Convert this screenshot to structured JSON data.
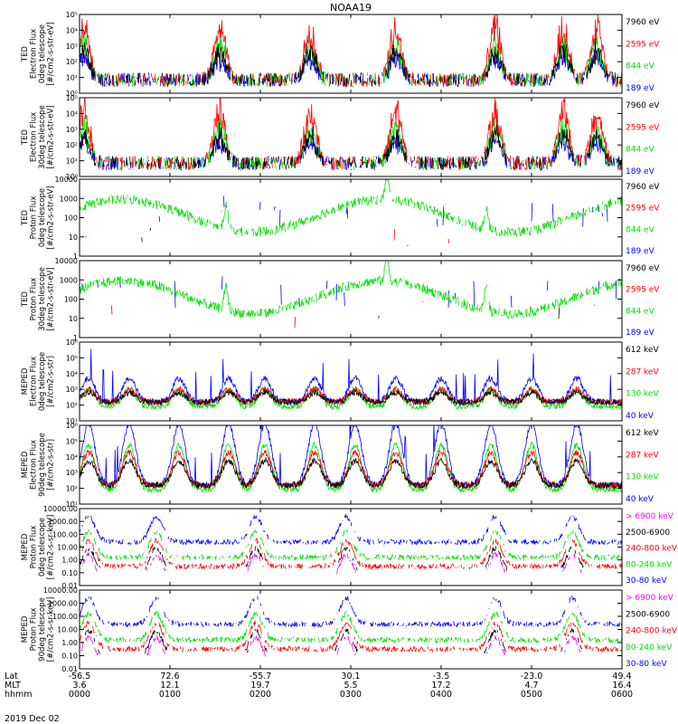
{
  "title": "NOAA19",
  "date_label": "2019 Dec 02",
  "colors": {
    "black": "#000000",
    "red": "#ff0000",
    "green": "#00e000",
    "blue": "#0000ff",
    "magenta": "#ff00ff"
  },
  "time_axis": {
    "row_labels": [
      "Lat",
      "MLT",
      "hhmm"
    ],
    "columns": [
      {
        "lat": "-56.5",
        "mlt": "3.6",
        "hhmm": "0000"
      },
      {
        "lat": "72.6",
        "mlt": "12.1",
        "hhmm": "0100"
      },
      {
        "lat": "-55.7",
        "mlt": "19.7",
        "hhmm": "0200"
      },
      {
        "lat": "30.1",
        "mlt": "5.5",
        "hhmm": "0300"
      },
      {
        "lat": "-3.5",
        "mlt": "17.2",
        "hhmm": "0400"
      },
      {
        "lat": "-23.0",
        "mlt": "4.7",
        "hhmm": "0500"
      },
      {
        "lat": "49.4",
        "mlt": "16.4",
        "hhmm": "0600"
      }
    ]
  },
  "chart_data": [
    {
      "type": "line",
      "ylabel": [
        "TED",
        "Electron Flux",
        "0deg telescope",
        "[#/cm2-s-str-eV]"
      ],
      "yscale": "log",
      "ylim": [
        1,
        100000
      ],
      "ticks": [
        "10⁰",
        "10¹",
        "10²",
        "10³",
        "10⁴",
        "10⁵"
      ],
      "tick_values": [
        1,
        10,
        100,
        1000,
        10000,
        100000
      ],
      "legend": [
        {
          "label": "7960 eV",
          "color": "#000000"
        },
        {
          "label": "2595 eV",
          "color": "#ff0000"
        },
        {
          "label": "844 eV",
          "color": "#00e000"
        },
        {
          "label": "189 eV",
          "color": "#0000ff"
        }
      ],
      "series_peaks": [
        {
          "color": "#ff0000",
          "times": [
            0.05,
            1.55,
            2.55,
            3.5,
            4.6,
            5.35,
            5.7
          ],
          "peak": 30000
        },
        {
          "color": "#00e000",
          "times": [
            0.05,
            1.55,
            2.55,
            3.5,
            4.6,
            5.35,
            5.7
          ],
          "peak": 800
        },
        {
          "color": "#000000",
          "times": [
            0.05,
            1.55,
            2.55,
            3.5,
            4.6,
            5.35
          ],
          "peak": 200
        }
      ]
    },
    {
      "type": "line",
      "ylabel": [
        "TED",
        "Electron Flux",
        "30deg telescope",
        "[#/cm2-s-str-eV]"
      ],
      "yscale": "log",
      "ylim": [
        1,
        100000
      ],
      "ticks": [
        "10⁰",
        "10¹",
        "10²",
        "10³",
        "10⁴",
        "10⁵"
      ],
      "tick_values": [
        1,
        10,
        100,
        1000,
        10000,
        100000
      ],
      "legend": [
        {
          "label": "7960 eV",
          "color": "#000000"
        },
        {
          "label": "2595 eV",
          "color": "#ff0000"
        },
        {
          "label": "844 eV",
          "color": "#00e000"
        },
        {
          "label": "189 eV",
          "color": "#0000ff"
        }
      ],
      "series_peaks": [
        {
          "color": "#ff0000",
          "times": [
            0.05,
            1.55,
            2.55,
            3.5,
            4.6,
            5.35,
            5.7
          ],
          "peak": 20000
        },
        {
          "color": "#00e000",
          "times": [
            0.05,
            1.55,
            2.55,
            3.5,
            4.6,
            5.35,
            5.7
          ],
          "peak": 700
        },
        {
          "color": "#000000",
          "times": [
            0.05,
            1.55,
            2.55,
            3.5,
            4.6,
            5.35
          ],
          "peak": 150
        }
      ]
    },
    {
      "type": "line",
      "ylabel": [
        "TED",
        "Proton Flux",
        "0deg telescope",
        "[#/cm2-s-str-eV]"
      ],
      "yscale": "log",
      "ylim": [
        1,
        10000
      ],
      "ticks": [
        "1",
        "10",
        "100",
        "1000",
        "10000"
      ],
      "tick_values": [
        1,
        10,
        100,
        1000,
        10000
      ],
      "legend": [
        {
          "label": "7960 eV",
          "color": "#000000"
        },
        {
          "label": "2595 eV",
          "color": "#ff0000"
        },
        {
          "label": "844 eV",
          "color": "#00e000"
        },
        {
          "label": "189 eV",
          "color": "#0000ff"
        }
      ]
    },
    {
      "type": "line",
      "ylabel": [
        "TED",
        "Proton Flux",
        "30deg telescope",
        "[#/cm2-s-str-eV]"
      ],
      "yscale": "log",
      "ylim": [
        1,
        10000
      ],
      "ticks": [
        "1",
        "10",
        "100",
        "1000",
        "10000"
      ],
      "tick_values": [
        1,
        10,
        100,
        1000,
        10000
      ],
      "legend": [
        {
          "label": "7960 eV",
          "color": "#000000"
        },
        {
          "label": "2595 eV",
          "color": "#ff0000"
        },
        {
          "label": "844 eV",
          "color": "#00e000"
        },
        {
          "label": "189 eV",
          "color": "#0000ff"
        }
      ]
    },
    {
      "type": "line",
      "ylabel": [
        "MEPED",
        "Electron Flux",
        "0deg telescope",
        "[#/cm2-s-str]"
      ],
      "yscale": "log",
      "ylim": [
        10,
        1000000
      ],
      "ticks": [
        "10¹",
        "10²",
        "10³",
        "10⁴",
        "10⁵",
        "10⁶"
      ],
      "tick_values": [
        10,
        100,
        1000,
        10000,
        100000,
        1000000
      ],
      "legend": [
        {
          "label": "612 keV",
          "color": "#000000"
        },
        {
          "label": "287 keV",
          "color": "#ff0000"
        },
        {
          "label": "130 keV",
          "color": "#00e000"
        },
        {
          "label": "40 keV",
          "color": "#0000ff"
        }
      ]
    },
    {
      "type": "line",
      "ylabel": [
        "MEPED",
        "Electron Flux",
        "90deg telescope",
        "[#/cm2-s-str]"
      ],
      "yscale": "log",
      "ylim": [
        10,
        1000000
      ],
      "ticks": [
        "10¹",
        "10²",
        "10³",
        "10⁴",
        "10⁵",
        "10⁶"
      ],
      "tick_values": [
        10,
        100,
        1000,
        10000,
        100000,
        1000000
      ],
      "legend": [
        {
          "label": "612 keV",
          "color": "#000000"
        },
        {
          "label": "287 keV",
          "color": "#ff0000"
        },
        {
          "label": "130 keV",
          "color": "#00e000"
        },
        {
          "label": "40 keV",
          "color": "#0000ff"
        }
      ]
    },
    {
      "type": "line",
      "ylabel": [
        "MEPED",
        "Proton Flux",
        "0deg telescope",
        "[#/cm2-s-sr-keV]"
      ],
      "yscale": "log",
      "ylim": [
        0.01,
        10000
      ],
      "ticks": [
        "0.01",
        "0.10",
        "1.00",
        "10.00",
        "100.00",
        "1000.00",
        "10000.00"
      ],
      "tick_values": [
        0.01,
        0.1,
        1,
        10,
        100,
        1000,
        10000
      ],
      "legend": [
        {
          "label": "> 6900 keV",
          "color": "#ff00ff"
        },
        {
          "label": "2500-6900",
          "color": "#000000"
        },
        {
          "label": "240-800 keV",
          "color": "#ff0000"
        },
        {
          "label": "80-240 keV",
          "color": "#00e000"
        },
        {
          "label": "30-80 keV",
          "color": "#0000ff"
        }
      ]
    },
    {
      "type": "line",
      "ylabel": [
        "MEPED",
        "Proton Flux",
        "90deg telescope",
        "[#/cm2-s-sr-keV]"
      ],
      "yscale": "log",
      "ylim": [
        0.01,
        10000
      ],
      "ticks": [
        "0.01",
        "0.10",
        "1.00",
        "10.00",
        "100.00",
        "1000.00",
        "10000.00"
      ],
      "tick_values": [
        0.01,
        0.1,
        1,
        10,
        100,
        1000,
        10000
      ],
      "legend": [
        {
          "label": "> 6900 keV",
          "color": "#ff00ff"
        },
        {
          "label": "2500-6900",
          "color": "#000000"
        },
        {
          "label": "240-800 keV",
          "color": "#ff0000"
        },
        {
          "label": "80-240 keV",
          "color": "#00e000"
        },
        {
          "label": "30-80 keV",
          "color": "#0000ff"
        }
      ]
    }
  ]
}
